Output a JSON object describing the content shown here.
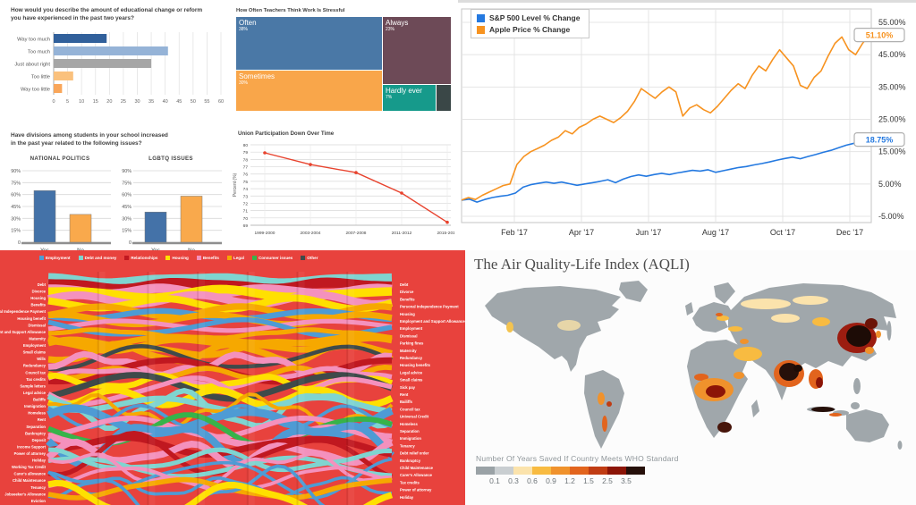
{
  "chart_data": [
    {
      "id": "edu",
      "type": "bar",
      "orientation": "horizontal",
      "title": "How would you describe the amount of educational change or reform\nyou have experienced in the past two years?",
      "categories": [
        "Way too much",
        "Too much",
        "Just about right",
        "Too little",
        "Way too little"
      ],
      "values": [
        19,
        41,
        35,
        7,
        3
      ],
      "colors": [
        "#31609b",
        "#95b3d7",
        "#a6a6a6",
        "#fac17d",
        "#f9a65a"
      ],
      "xlim": [
        0,
        60
      ],
      "xtick_step": 5
    },
    {
      "id": "divisions",
      "type": "bar",
      "orientation": "vertical",
      "title": "Have divisions among students in your school increased\nin the past year related to  the following issues?",
      "panels": [
        {
          "title": "NATIONAL POLITICS",
          "categories": [
            "Yes",
            "No"
          ],
          "values": [
            65,
            35
          ]
        },
        {
          "title": "LGBTQ ISSUES",
          "categories": [
            "Yes",
            "No"
          ],
          "values": [
            38,
            58
          ]
        }
      ],
      "bar_colors": [
        "#4472a8",
        "#f9a94c"
      ],
      "yticks": [
        "0",
        "15%",
        "30%",
        "45%",
        "60%",
        "75%",
        "90%"
      ],
      "ylim": [
        0,
        90
      ]
    },
    {
      "id": "stress",
      "type": "treemap",
      "title": "How Often Teachers Think Work Is Stressful",
      "slices": [
        {
          "label": "Often",
          "pct": "38%",
          "value": 38,
          "color": "#4a78a6"
        },
        {
          "label": "Sometimes",
          "pct": "30%",
          "value": 30,
          "color": "#f9a64a"
        },
        {
          "label": "Always",
          "pct": "23%",
          "value": 23,
          "color": "#6d4a57"
        },
        {
          "label": "Hardly ever",
          "pct": "7%",
          "value": 7,
          "color": "#169a8b"
        },
        {
          "label": "",
          "pct": "",
          "value": 2,
          "color": "#3a4747"
        }
      ]
    },
    {
      "id": "union",
      "type": "line",
      "title": "Union Participation Down Over Time",
      "ylabel": "Percent (%)",
      "categories": [
        "1999-2000",
        "2003-2004",
        "2007-2008",
        "2011-2012",
        "2015-2016"
      ],
      "values": [
        78.9,
        77.3,
        76.2,
        73.4,
        69.4
      ],
      "ylim": [
        69,
        80
      ],
      "color": "#e8432e"
    },
    {
      "id": "stocks",
      "type": "line",
      "xticks": [
        "Feb '17",
        "Apr '17",
        "Jun '17",
        "Aug '17",
        "Oct '17",
        "Dec '17"
      ],
      "yticks": [
        "55.00%",
        "45.00%",
        "35.00%",
        "25.00%",
        "15.00%",
        "5.00%",
        "-5.00%"
      ],
      "ytick_values": [
        55,
        45,
        35,
        25,
        15,
        5,
        -5
      ],
      "ylim": [
        -5,
        55
      ],
      "series": [
        {
          "name": "S&P 500 Level % Change",
          "color": "#2479e0",
          "end_label": "18.75%",
          "values": [
            0,
            0.3,
            -0.6,
            0.2,
            0.8,
            1.2,
            1.5,
            2.2,
            4.0,
            4.8,
            5.2,
            5.6,
            5.2,
            5.6,
            5.1,
            4.6,
            5.0,
            5.4,
            5.8,
            6.3,
            5.4,
            6.5,
            7.3,
            7.8,
            7.4,
            7.9,
            8.3,
            7.9,
            8.4,
            8.8,
            9.2,
            9.0,
            9.4,
            8.6,
            9.1,
            9.6,
            10.1,
            10.4,
            10.9,
            11.3,
            11.8,
            12.4,
            12.9,
            13.3,
            12.8,
            13.5,
            14.1,
            14.8,
            15.4,
            16.2,
            17.0,
            17.6,
            18.1,
            18.75
          ]
        },
        {
          "name": "Apple Price % Change",
          "color": "#f79320",
          "end_label": "51.10%",
          "values": [
            0,
            0.8,
            0.2,
            1.5,
            2.5,
            3.5,
            4.5,
            5.0,
            11.0,
            13.5,
            15.0,
            16.0,
            17.0,
            18.5,
            19.5,
            21.5,
            20.5,
            22.5,
            23.5,
            25.0,
            26.0,
            25.0,
            24.0,
            25.5,
            27.5,
            30.5,
            34.5,
            33.0,
            31.5,
            33.5,
            35.0,
            33.5,
            26.0,
            28.5,
            29.5,
            28.0,
            27.0,
            29.0,
            31.5,
            34.0,
            36.0,
            34.5,
            38.5,
            41.5,
            40.0,
            43.5,
            46.5,
            44.0,
            41.5,
            35.5,
            34.5,
            38.0,
            40.0,
            44.5,
            48.5,
            50.5,
            46.5,
            45.0,
            48.5,
            51.1
          ]
        }
      ]
    },
    {
      "id": "flow",
      "type": "area",
      "background": "#e8423d",
      "legend": [
        {
          "label": "Employment",
          "color": "#4e9bd4"
        },
        {
          "label": "Debt and money",
          "color": "#7fd4d0"
        },
        {
          "label": "Relationships",
          "color": "#c01820"
        },
        {
          "label": "Housing",
          "color": "#ffe000"
        },
        {
          "label": "Benefits",
          "color": "#f491bd"
        },
        {
          "label": "Legal",
          "color": "#f6a800"
        },
        {
          "label": "Consumer issues",
          "color": "#37b34a"
        },
        {
          "label": "Other",
          "color": "#3f4a4a"
        }
      ],
      "left_labels": [
        "Debt",
        "Divorce",
        "Housing",
        "Benefits",
        "Personal Independence Payment",
        "Housing benefit",
        "Dismissal",
        "Employment and Support Allowance",
        "Maternity",
        "Employment",
        "Small claims",
        "Wills",
        "Redundancy",
        "Council tax",
        "Tax credits",
        "Sample letters",
        "Legal advice",
        "Bailiffs",
        "Immigration",
        "Homeless",
        "Rent",
        "Separation",
        "Bankruptcy",
        "Deposit",
        "Income Support",
        "Power of attorney",
        "Holiday",
        "Working Tax Credit",
        "Carer's allowance",
        "Child Maintenance",
        "Tenancy",
        "Jobseeker's Allowance",
        "Eviction"
      ],
      "right_labels": [
        "Debt",
        "Divorce",
        "Benefits",
        "Personal Independence Payment",
        "Housing",
        "Employment and Support Allowance",
        "Employment",
        "Dismissal",
        "Parking fines",
        "Maternity",
        "Redundancy",
        "Housing benefits",
        "Legal advice",
        "Small claims",
        "Sick pay",
        "Rent",
        "Bailiffs",
        "Council tax",
        "Universal Credit",
        "Homeless",
        "Separation",
        "Immigration",
        "Tenancy",
        "Debt relief order",
        "Bankruptcy",
        "Child Maintenance",
        "Carer's Allowance",
        "Tax credits",
        "Power of attorney",
        "Holiday"
      ]
    },
    {
      "id": "aqli",
      "type": "heatmap",
      "title": "The Air Quality-Life Index (AQLI)",
      "legend_title": "Number Of Years Saved If Country Meets WHO Standard",
      "legend_bins": [
        "#9aa2a6",
        "#c9ced1",
        "#fbe3ac",
        "#f8bb41",
        "#f0922c",
        "#e2641d",
        "#c03c13",
        "#8c1507",
        "#26100a"
      ],
      "legend_labels": [
        "0.1",
        "0.3",
        "0.6",
        "0.9",
        "1.2",
        "1.5",
        "2.5",
        "3.5"
      ],
      "land_color": "#a0a7ab"
    }
  ]
}
